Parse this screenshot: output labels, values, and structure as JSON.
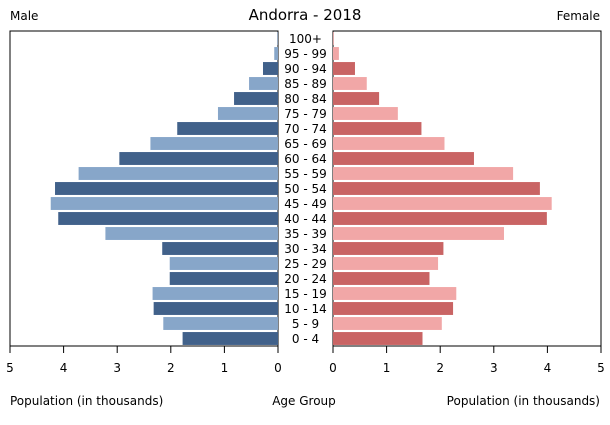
{
  "chart_data": {
    "type": "bar",
    "title": "Andorra - 2018",
    "left_label": "Male",
    "right_label": "Female",
    "xlabel_left": "Population (in thousands)",
    "xlabel_center": "Age Group",
    "xlabel_right": "Population (in thousands)",
    "xlim": [
      0,
      5
    ],
    "x_ticks": [
      5,
      4,
      3,
      2,
      1,
      0
    ],
    "x_ticks_right": [
      0,
      1,
      2,
      3,
      4,
      5
    ],
    "categories": [
      "100+",
      "95 - 99",
      "90 - 94",
      "85 - 89",
      "80 - 84",
      "75 - 79",
      "70 - 74",
      "65 - 69",
      "60 - 64",
      "55 - 59",
      "50 - 54",
      "45 - 49",
      "40 - 44",
      "35 - 39",
      "30 - 34",
      "25 - 29",
      "20 - 24",
      "15 - 19",
      "10 - 14",
      "5 - 9",
      "0 - 4"
    ],
    "series": [
      {
        "name": "Male",
        "values": [
          0.01,
          0.07,
          0.28,
          0.54,
          0.82,
          1.12,
          1.88,
          2.38,
          2.96,
          3.72,
          4.16,
          4.24,
          4.1,
          3.22,
          2.16,
          2.02,
          2.02,
          2.34,
          2.32,
          2.14,
          1.78
        ]
      },
      {
        "name": "Female",
        "values": [
          0.01,
          0.11,
          0.41,
          0.63,
          0.86,
          1.21,
          1.65,
          2.08,
          2.63,
          3.36,
          3.86,
          4.08,
          3.99,
          3.19,
          2.06,
          1.96,
          1.8,
          2.3,
          2.24,
          2.03,
          1.67
        ]
      }
    ],
    "colors": {
      "male_dark": "#41618a",
      "male_light": "#87a6c9",
      "female_dark": "#c96464",
      "female_light": "#f1a7a7"
    },
    "grid": false
  }
}
